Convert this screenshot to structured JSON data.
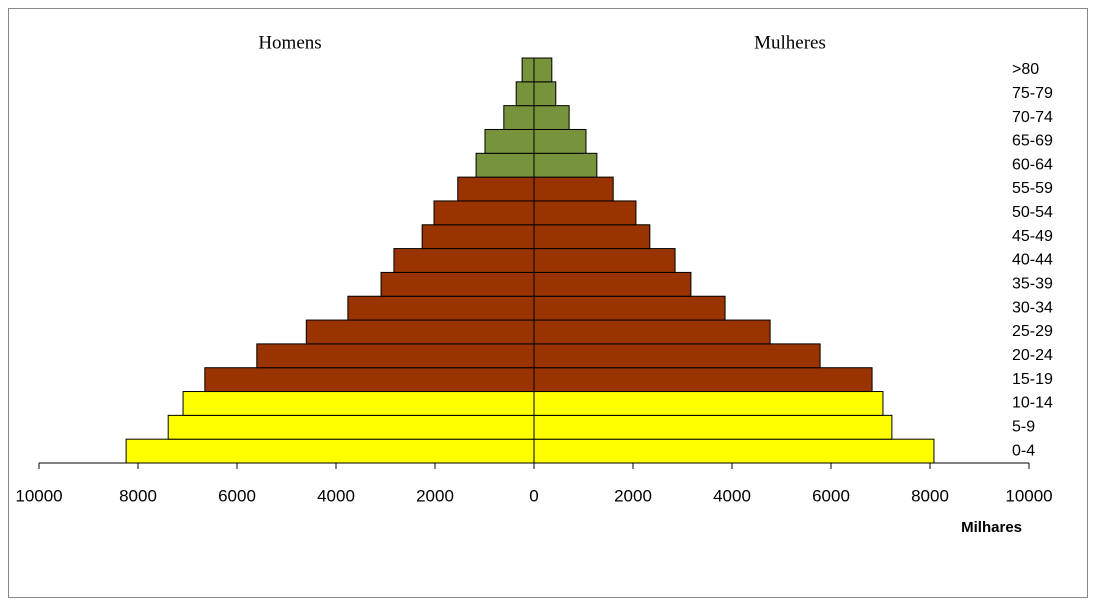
{
  "chart_data": {
    "type": "pyramid",
    "x_label": "Milhares",
    "categories": [
      "0-4",
      "5-9",
      "10-14",
      "15-19",
      "20-24",
      "25-29",
      "30-34",
      "35-39",
      "40-44",
      "45-49",
      "50-54",
      "55-59",
      "60-64",
      "65-69",
      "70-74",
      "75-79",
      ">80"
    ],
    "category_colors": [
      "#ffff00",
      "#ffff00",
      "#ffff00",
      "#993300",
      "#993300",
      "#993300",
      "#993300",
      "#993300",
      "#993300",
      "#993300",
      "#993300",
      "#993300",
      "#77933c",
      "#77933c",
      "#77933c",
      "#77933c",
      "#77933c"
    ],
    "series": [
      {
        "name": "Homens",
        "values": [
          -8240,
          -7390,
          -7090,
          -6650,
          -5600,
          -4600,
          -3760,
          -3090,
          -2830,
          -2260,
          -2020,
          -1540,
          -1170,
          -990,
          -610,
          -360,
          -240
        ]
      },
      {
        "name": "Mulheres",
        "values": [
          8080,
          7230,
          7050,
          6830,
          5780,
          4770,
          3860,
          3170,
          2850,
          2340,
          2060,
          1600,
          1270,
          1050,
          710,
          440,
          360
        ]
      }
    ],
    "xlim": [
      -10000,
      10000
    ],
    "xticks": [
      {
        "value": -10000,
        "label": "10000"
      },
      {
        "value": -8000,
        "label": "8000"
      },
      {
        "value": -6000,
        "label": "6000"
      },
      {
        "value": -4000,
        "label": "4000"
      },
      {
        "value": -2000,
        "label": "2000"
      },
      0,
      2000,
      4000,
      6000,
      8000,
      10000
    ]
  }
}
